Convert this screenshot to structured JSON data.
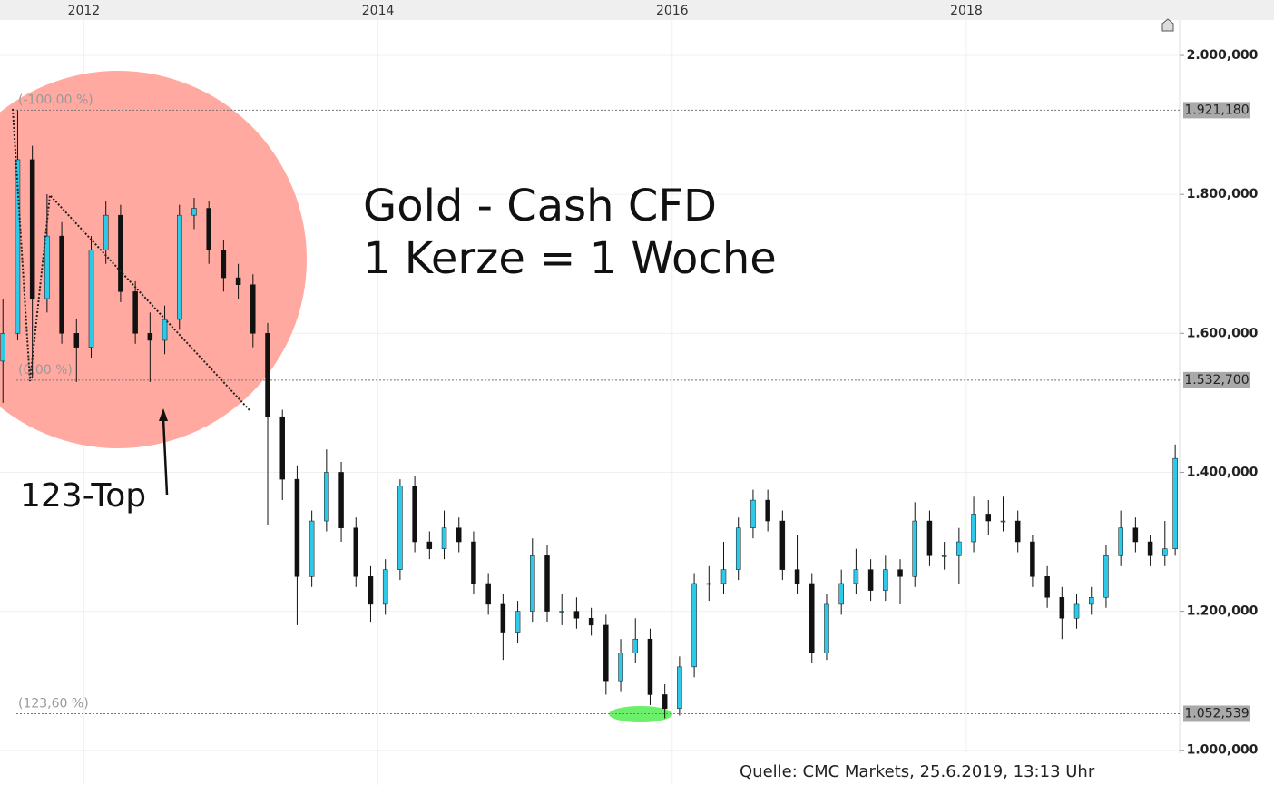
{
  "chart_data": {
    "type": "candlestick",
    "title": "Gold - Cash CFD",
    "subtitle": "1 Kerze = 1 Woche",
    "annotation": "123-Top",
    "source": "Quelle: CMC Markets, 25.6.2019, 13:13 Uhr",
    "up_color": "#2ec8e8",
    "down_color": "#111111",
    "grid": true,
    "xlim": [
      2011.43,
      2019.45
    ],
    "xticks": [
      2012,
      2014,
      2016,
      2018
    ],
    "ylim": [
      950,
      2051
    ],
    "yticks": [
      {
        "value": 1000,
        "label": "1.000,000"
      },
      {
        "value": 1200,
        "label": "1.200,000"
      },
      {
        "value": 1400,
        "label": "1.400,000"
      },
      {
        "value": 1600,
        "label": "1.600,000"
      },
      {
        "value": 1800,
        "label": "1.800,000"
      },
      {
        "value": 2000,
        "label": "2.000,000"
      }
    ],
    "levels": [
      {
        "value": 1921.18,
        "label": "1.921,180",
        "percent": "(-100,00 %)"
      },
      {
        "value": 1532.7,
        "label": "1.532,700",
        "percent": "(0,00 %)"
      },
      {
        "value": 1052.539,
        "label": "1.052,539",
        "percent": "(123,60 %)"
      }
    ],
    "x": [
      2011.45,
      2011.55,
      2011.65,
      2011.75,
      2011.85,
      2011.95,
      2012.05,
      2012.15,
      2012.25,
      2012.35,
      2012.45,
      2012.55,
      2012.65,
      2012.75,
      2012.85,
      2012.95,
      2013.05,
      2013.15,
      2013.25,
      2013.35,
      2013.45,
      2013.55,
      2013.65,
      2013.75,
      2013.85,
      2013.95,
      2014.05,
      2014.15,
      2014.25,
      2014.35,
      2014.45,
      2014.55,
      2014.65,
      2014.75,
      2014.85,
      2014.95,
      2015.05,
      2015.15,
      2015.25,
      2015.35,
      2015.45,
      2015.55,
      2015.65,
      2015.75,
      2015.85,
      2015.95,
      2016.05,
      2016.15,
      2016.25,
      2016.35,
      2016.45,
      2016.55,
      2016.65,
      2016.75,
      2016.85,
      2016.95,
      2017.05,
      2017.15,
      2017.25,
      2017.35,
      2017.45,
      2017.55,
      2017.65,
      2017.75,
      2017.85,
      2017.95,
      2018.05,
      2018.15,
      2018.25,
      2018.35,
      2018.45,
      2018.55,
      2018.65,
      2018.75,
      2018.85,
      2018.95,
      2019.05,
      2019.15,
      2019.25,
      2019.35,
      2019.42
    ],
    "open": [
      1560,
      1600,
      1850,
      1650,
      1740,
      1600,
      1580,
      1720,
      1770,
      1660,
      1600,
      1590,
      1620,
      1770,
      1780,
      1720,
      1680,
      1670,
      1600,
      1480,
      1390,
      1250,
      1330,
      1400,
      1320,
      1250,
      1210,
      1260,
      1380,
      1300,
      1290,
      1320,
      1300,
      1240,
      1210,
      1170,
      1200,
      1280,
      1200,
      1200,
      1190,
      1180,
      1100,
      1140,
      1160,
      1080,
      1060,
      1120,
      1240,
      1240,
      1260,
      1320,
      1360,
      1330,
      1260,
      1240,
      1140,
      1210,
      1240,
      1260,
      1230,
      1260,
      1250,
      1330,
      1280,
      1280,
      1300,
      1340,
      1330,
      1330,
      1300,
      1250,
      1220,
      1190,
      1210,
      1220,
      1280,
      1320,
      1300,
      1280,
      1290
    ],
    "high": [
      1650,
      1921,
      1870,
      1800,
      1760,
      1620,
      1740,
      1790,
      1785,
      1675,
      1630,
      1640,
      1785,
      1795,
      1790,
      1735,
      1700,
      1685,
      1615,
      1490,
      1410,
      1345,
      1433,
      1415,
      1335,
      1265,
      1275,
      1390,
      1395,
      1315,
      1345,
      1335,
      1315,
      1255,
      1225,
      1215,
      1305,
      1295,
      1225,
      1220,
      1205,
      1195,
      1160,
      1190,
      1175,
      1095,
      1135,
      1255,
      1265,
      1300,
      1335,
      1375,
      1375,
      1345,
      1310,
      1255,
      1225,
      1260,
      1290,
      1275,
      1280,
      1275,
      1357,
      1345,
      1300,
      1320,
      1365,
      1360,
      1365,
      1345,
      1310,
      1265,
      1235,
      1225,
      1235,
      1295,
      1345,
      1335,
      1310,
      1330,
      1440
    ],
    "low": [
      1500,
      1590,
      1535,
      1630,
      1585,
      1530,
      1565,
      1700,
      1645,
      1585,
      1530,
      1570,
      1605,
      1750,
      1700,
      1660,
      1650,
      1580,
      1324,
      1360,
      1180,
      1235,
      1315,
      1300,
      1235,
      1185,
      1195,
      1245,
      1285,
      1275,
      1275,
      1285,
      1225,
      1195,
      1130,
      1155,
      1185,
      1185,
      1180,
      1175,
      1165,
      1080,
      1085,
      1125,
      1065,
      1046,
      1050,
      1105,
      1215,
      1225,
      1245,
      1305,
      1315,
      1245,
      1225,
      1125,
      1130,
      1195,
      1225,
      1215,
      1215,
      1210,
      1235,
      1265,
      1260,
      1240,
      1285,
      1310,
      1315,
      1285,
      1235,
      1205,
      1160,
      1175,
      1195,
      1205,
      1265,
      1285,
      1265,
      1265,
      1280
    ],
    "close": [
      1600,
      1850,
      1650,
      1740,
      1600,
      1580,
      1720,
      1770,
      1660,
      1600,
      1590,
      1620,
      1770,
      1780,
      1720,
      1680,
      1670,
      1600,
      1480,
      1390,
      1250,
      1330,
      1400,
      1320,
      1250,
      1210,
      1260,
      1380,
      1300,
      1290,
      1320,
      1300,
      1240,
      1210,
      1170,
      1200,
      1280,
      1200,
      1200,
      1190,
      1180,
      1100,
      1140,
      1160,
      1080,
      1060,
      1120,
      1240,
      1240,
      1260,
      1320,
      1360,
      1330,
      1260,
      1240,
      1140,
      1210,
      1240,
      1260,
      1230,
      1260,
      1250,
      1330,
      1280,
      1280,
      1300,
      1340,
      1330,
      1330,
      1300,
      1250,
      1220,
      1190,
      1210,
      1220,
      1280,
      1320,
      1300,
      1280,
      1290,
      1420
    ]
  }
}
